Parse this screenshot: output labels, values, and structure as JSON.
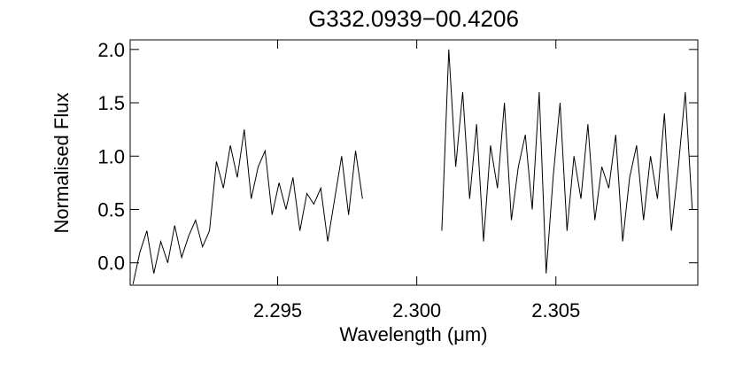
{
  "chart_data": {
    "type": "line",
    "title": "G332.0939−00.4206",
    "x_label": "Wavelength (μm)",
    "y_label": "Normalised Flux",
    "color": "#000000",
    "x": [
      2.2898,
      2.29005,
      2.2903,
      2.29055,
      2.2908,
      2.29105,
      2.2913,
      2.29155,
      2.2918,
      2.29205,
      2.2923,
      2.29255,
      2.2928,
      2.29305,
      2.2933,
      2.29355,
      2.2938,
      2.29405,
      2.2943,
      2.29455,
      2.2948,
      2.29505,
      2.2953,
      2.29555,
      2.2958,
      2.29605,
      2.2963,
      2.29655,
      2.2968,
      2.29705,
      2.2973,
      2.29755,
      2.2978,
      2.29805,
      2.2995,
      2.3009,
      2.30115,
      2.3014,
      2.30165,
      2.3019,
      2.30215,
      2.3024,
      2.30265,
      2.3029,
      2.30315,
      2.3034,
      2.30365,
      2.3039,
      2.30415,
      2.3044,
      2.30465,
      2.3049,
      2.30515,
      2.3054,
      2.30565,
      2.3059,
      2.30615,
      2.3064,
      2.30665,
      2.3069,
      2.30715,
      2.3074,
      2.30765,
      2.3079,
      2.30815,
      2.3084,
      2.30865,
      2.3089,
      2.30915,
      2.3094,
      2.30965,
      2.3099
    ],
    "values": [
      -0.2,
      0.1,
      0.3,
      -0.1,
      0.2,
      0.0,
      0.35,
      0.05,
      0.25,
      0.4,
      0.15,
      0.3,
      0.95,
      0.7,
      1.1,
      0.8,
      1.25,
      0.6,
      0.9,
      1.05,
      0.45,
      0.75,
      0.5,
      0.8,
      0.3,
      0.65,
      0.55,
      0.7,
      0.2,
      0.6,
      1.0,
      0.45,
      1.05,
      0.6,
      null,
      0.3,
      2.0,
      0.9,
      1.6,
      0.6,
      1.3,
      0.2,
      1.1,
      0.7,
      1.5,
      0.4,
      0.9,
      1.2,
      0.5,
      1.6,
      -0.1,
      0.8,
      1.5,
      0.3,
      1.0,
      0.6,
      1.3,
      0.4,
      0.9,
      0.7,
      1.2,
      0.2,
      0.8,
      1.1,
      0.4,
      1.0,
      0.6,
      1.4,
      0.3,
      0.9,
      1.6,
      0.5
    ],
    "xlim": [
      2.2897,
      2.3101
    ],
    "ylim": [
      -0.21,
      2.09
    ],
    "xticks": [
      2.295,
      {
        "value": 2.3,
        "label": "2.300"
      },
      2.305
    ],
    "yticks": [
      {
        "value": 0,
        "label": "0.0"
      },
      0.5,
      {
        "value": 1,
        "label": "1.0"
      },
      1.5,
      {
        "value": 2,
        "label": "2.0"
      }
    ]
  }
}
